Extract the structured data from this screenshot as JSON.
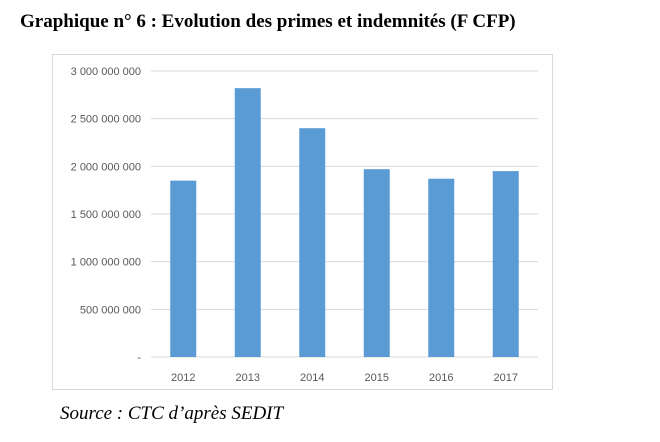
{
  "title": "Graphique n° 6 : Evolution des primes et indemnités (F CFP)",
  "source": "Source : CTC d’après SEDIT",
  "chart_data": {
    "type": "bar",
    "categories": [
      "2012",
      "2013",
      "2014",
      "2015",
      "2016",
      "2017"
    ],
    "values": [
      1850000000,
      2820000000,
      2400000000,
      1970000000,
      1870000000,
      1950000000
    ],
    "ylim": [
      0,
      3000000000
    ],
    "yticks": [
      0,
      500000000,
      1000000000,
      1500000000,
      2000000000,
      2500000000,
      3000000000
    ],
    "ytick_labels": [
      "-",
      "500 000 000",
      "1 000 000 000",
      "1 500 000 000",
      "2 000 000 000",
      "2 500 000 000",
      "3 000 000 000"
    ],
    "grid": true,
    "legend": "none",
    "bar_color": "#5b9bd5"
  }
}
